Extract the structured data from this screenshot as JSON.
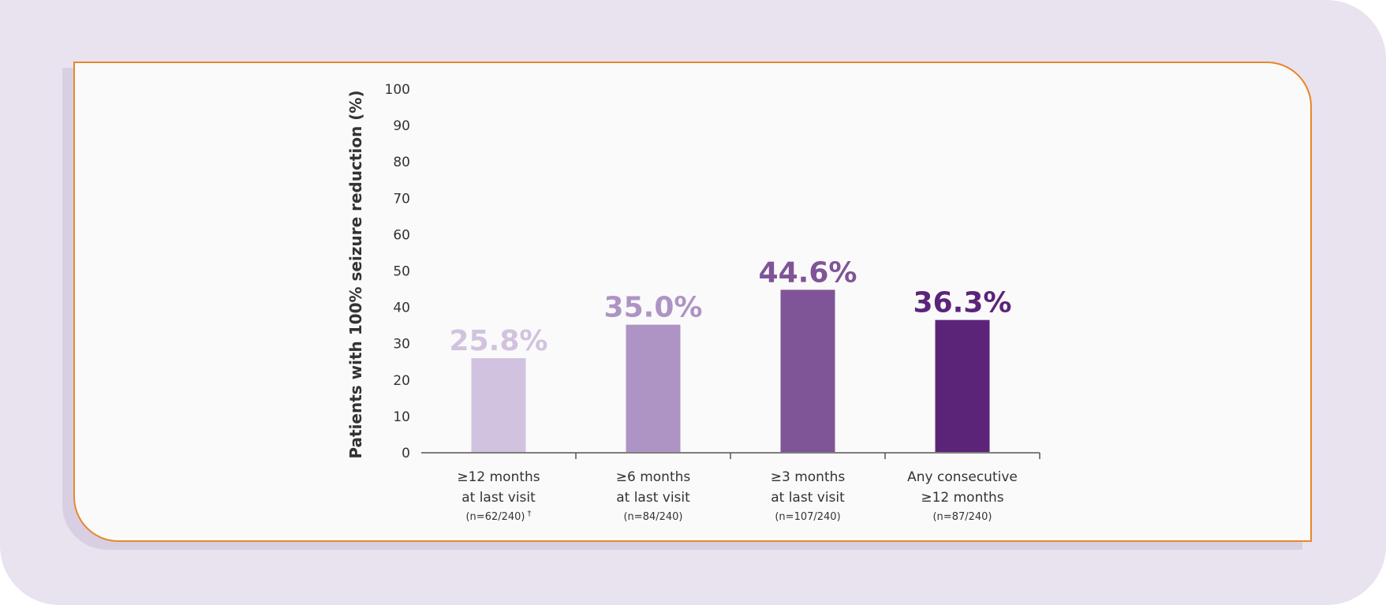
{
  "chart_data": {
    "type": "bar",
    "ylabel": "Patients with 100% seizure reduction (%)",
    "xlabel": "",
    "ylim": [
      0,
      100
    ],
    "yticks": [
      0,
      10,
      20,
      30,
      40,
      50,
      60,
      70,
      80,
      90,
      100
    ],
    "grid": false,
    "categories": [
      {
        "line1": "≥12 months",
        "line2": "at last visit",
        "n": "(n=62/240)",
        "footnote": "†"
      },
      {
        "line1": "≥6 months",
        "line2": "at last visit",
        "n": "(n=84/240)",
        "footnote": ""
      },
      {
        "line1": "≥3 months",
        "line2": "at last visit",
        "n": "(n=107/240)",
        "footnote": ""
      },
      {
        "line1": "Any consecutive",
        "line2": "≥12 months",
        "n": "(n=87/240)",
        "footnote": ""
      }
    ],
    "values": [
      25.8,
      35.0,
      44.6,
      36.3
    ],
    "value_labels": [
      "25.8%",
      "35.0%",
      "44.6%",
      "36.3%"
    ],
    "colors": [
      "#d1c3df",
      "#ae94c4",
      "#7f5597",
      "#5b2479"
    ]
  },
  "colors": {
    "background": "#e9e2ef",
    "card": "#fafafa",
    "card_border": "#e8872b",
    "axis": "#555555",
    "text": "#333333"
  }
}
